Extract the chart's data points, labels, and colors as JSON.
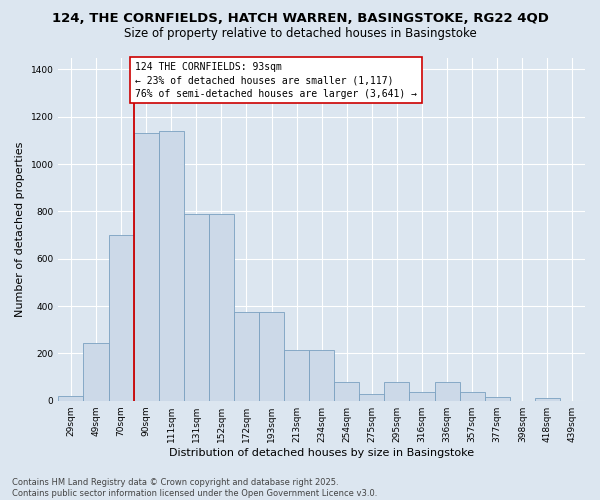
{
  "title_line1": "124, THE CORNFIELDS, HATCH WARREN, BASINGSTOKE, RG22 4QD",
  "title_line2": "Size of property relative to detached houses in Basingstoke",
  "xlabel": "Distribution of detached houses by size in Basingstoke",
  "ylabel": "Number of detached properties",
  "categories": [
    "29sqm",
    "49sqm",
    "70sqm",
    "90sqm",
    "111sqm",
    "131sqm",
    "152sqm",
    "172sqm",
    "193sqm",
    "213sqm",
    "234sqm",
    "254sqm",
    "275sqm",
    "295sqm",
    "316sqm",
    "336sqm",
    "357sqm",
    "377sqm",
    "398sqm",
    "418sqm",
    "439sqm"
  ],
  "values": [
    20,
    245,
    700,
    1130,
    1140,
    790,
    790,
    375,
    375,
    215,
    215,
    80,
    30,
    80,
    35,
    80,
    35,
    15,
    0,
    10,
    0
  ],
  "bar_color": "#ccd9e8",
  "bar_edge_color": "#7aa0c0",
  "vline_color": "#cc0000",
  "vline_x_index": 3,
  "annotation_text": "124 THE CORNFIELDS: 93sqm\n← 23% of detached houses are smaller (1,117)\n76% of semi-detached houses are larger (3,641) →",
  "annotation_box_color": "white",
  "annotation_box_edge_color": "#cc0000",
  "ylim": [
    0,
    1450
  ],
  "yticks": [
    0,
    200,
    400,
    600,
    800,
    1000,
    1200,
    1400
  ],
  "bg_color": "#dce6f0",
  "plot_bg_color": "#dce6f0",
  "footer_text": "Contains HM Land Registry data © Crown copyright and database right 2025.\nContains public sector information licensed under the Open Government Licence v3.0.",
  "title_fontsize": 9.5,
  "subtitle_fontsize": 8.5,
  "axis_label_fontsize": 8,
  "tick_fontsize": 6.5,
  "annotation_fontsize": 7,
  "footer_fontsize": 6
}
